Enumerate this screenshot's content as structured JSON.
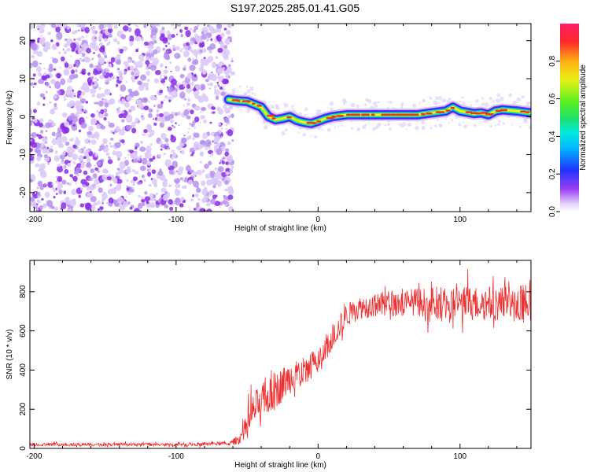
{
  "title": "S197.2025.285.01.41.G05",
  "chart_data": [
    {
      "type": "heatmap",
      "title": "S197.2025.285.01.41.G05",
      "xlabel": "Height of straight line (km)",
      "ylabel": "Frequency (Hz)",
      "xlim": [
        -203,
        150
      ],
      "ylim": [
        -25,
        24.5
      ],
      "xticks": [
        -200,
        -100,
        0,
        100
      ],
      "yticks": [
        -20,
        -10,
        0,
        10,
        20
      ],
      "noise_region_x": [
        -203,
        -60
      ],
      "ridge": {
        "x": [
          -63,
          -58,
          -50,
          -40,
          -35,
          -30,
          -25,
          -20,
          -15,
          -10,
          -5,
          0,
          5,
          10,
          20,
          40,
          60,
          70,
          80,
          90,
          95,
          100,
          110,
          115,
          120,
          125,
          130,
          140,
          150
        ],
        "y": [
          4.5,
          4.2,
          4.0,
          2.5,
          0,
          -0.8,
          -0.5,
          0,
          -1.0,
          -1.5,
          -1.8,
          -1.2,
          -0.5,
          0,
          0.5,
          0.5,
          0.5,
          0.5,
          1.0,
          1.5,
          2.5,
          1.5,
          0.8,
          1.0,
          0.5,
          1.5,
          1.8,
          1.5,
          1.0
        ]
      },
      "colorbar": {
        "label": "Normalized spectral amplitude",
        "ticks": [
          "0.0",
          "0.2",
          "0.4",
          "0.6",
          "0.8"
        ],
        "range": [
          0,
          1
        ]
      }
    },
    {
      "type": "line",
      "xlabel": "Height of straight line (km)",
      "ylabel": "SNR (10 * v/v)",
      "xlim": [
        -203,
        150
      ],
      "ylim": [
        0,
        960
      ],
      "xticks": [
        -200,
        -100,
        0,
        100
      ],
      "yticks": [
        0,
        200,
        400,
        600,
        800
      ],
      "series": [
        {
          "name": "SNR",
          "color": "#ee3030",
          "envelope_x": [
            -203,
            -150,
            -100,
            -62,
            -55,
            -50,
            -45,
            -40,
            -35,
            -30,
            -25,
            -20,
            -15,
            -10,
            -5,
            0,
            5,
            10,
            15,
            20,
            25,
            30,
            40,
            50,
            60,
            70,
            80,
            90,
            100,
            110,
            120,
            130,
            140,
            150
          ],
          "envelope_y": [
            20,
            20,
            20,
            25,
            50,
            110,
            200,
            240,
            260,
            290,
            330,
            360,
            380,
            400,
            420,
            450,
            500,
            560,
            620,
            680,
            700,
            720,
            730,
            740,
            740,
            750,
            740,
            750,
            740,
            740,
            740,
            740,
            740,
            740
          ],
          "spread_y": [
            8,
            8,
            8,
            10,
            30,
            70,
            90,
            90,
            90,
            90,
            90,
            80,
            80,
            70,
            70,
            60,
            60,
            60,
            60,
            60,
            60,
            60,
            60,
            70,
            70,
            70,
            80,
            90,
            90,
            90,
            90,
            90,
            100,
            100
          ]
        }
      ]
    }
  ]
}
